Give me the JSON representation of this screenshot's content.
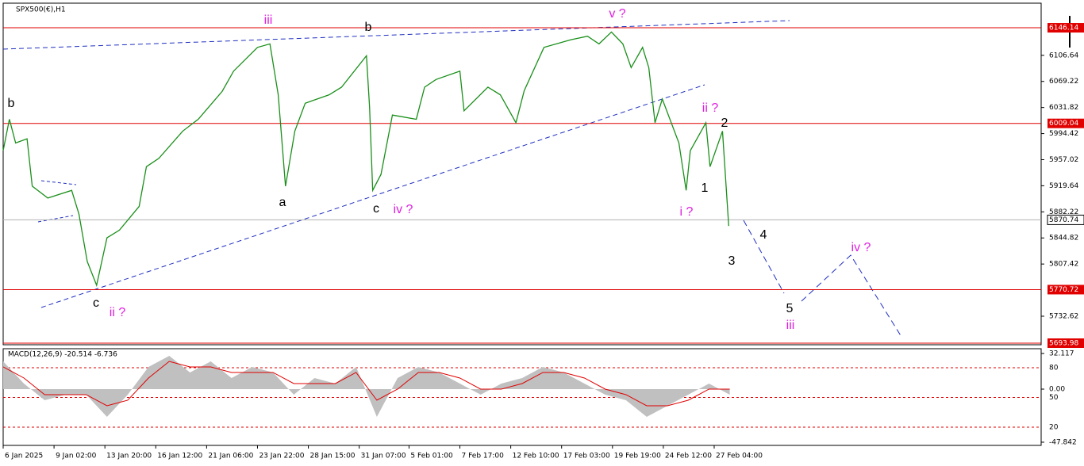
{
  "chart_data": [
    {
      "type": "line",
      "title": "SPX500(€),H1",
      "color": "#1a8f1a",
      "x": [
        0,
        6,
        12,
        23,
        28,
        43,
        66,
        73,
        81,
        90,
        100,
        112,
        131,
        138,
        150,
        173,
        188,
        211,
        222,
        245,
        257,
        265,
        272,
        281,
        291,
        314,
        326,
        350,
        353,
        356,
        364,
        375,
        398,
        406,
        417,
        440,
        444,
        467,
        479,
        494,
        502,
        521,
        547,
        563,
        574,
        586,
        597,
        605,
        616,
        622,
        628,
        635,
        651,
        658,
        662,
        677,
        681,
        693,
        699
      ],
      "values": [
        5970,
        6015,
        5981,
        5987,
        5919,
        5902,
        5913,
        5879,
        5811,
        5777,
        5845,
        5856,
        5890,
        5947,
        5959,
        5998,
        6015,
        6055,
        6084,
        6118,
        6123,
        6050,
        5919,
        5998,
        6038,
        6050,
        6061,
        6106,
        6032,
        5913,
        5936,
        6021,
        6015,
        6061,
        6072,
        6084,
        6027,
        6061,
        6050,
        6010,
        6056,
        6118,
        6129,
        6134,
        6123,
        6140,
        6123,
        6089,
        6118,
        6089,
        6010,
        6044,
        5981,
        5913,
        5970,
        6010,
        5947,
        5998,
        5862
      ],
      "xlim": [
        0,
        1000
      ],
      "ylim": [
        5691.7,
        6181.4
      ],
      "yticks": [
        6106.64,
        6069.22,
        6031.82,
        5994.42,
        5957.02,
        5919.64,
        5882.22,
        5844.82,
        5807.42,
        5732.62
      ],
      "xticks": [
        {
          "value": 0,
          "label": "6 Jan 2025"
        },
        {
          "value": 49,
          "label": "9 Jan 02:00"
        },
        {
          "value": 98,
          "label": "13 Jan 20:00"
        },
        {
          "value": 147,
          "label": "16 Jan 12:00"
        },
        {
          "value": 196,
          "label": "21 Jan 06:00"
        },
        {
          "value": 245,
          "label": "23 Jan 22:00"
        },
        {
          "value": 294,
          "label": "28 Jan 15:00"
        },
        {
          "value": 343,
          "label": "31 Jan 07:00"
        },
        {
          "value": 391,
          "label": "5 Feb 01:00"
        },
        {
          "value": 440,
          "label": "7 Feb 17:00"
        },
        {
          "value": 489,
          "label": "12 Feb 10:00"
        },
        {
          "value": 538,
          "label": "17 Feb 03:00"
        },
        {
          "value": 587,
          "label": "19 Feb 19:00"
        },
        {
          "value": 636,
          "label": "24 Feb 12:00"
        },
        {
          "value": 685,
          "label": "27 Feb 04:00"
        }
      ],
      "levels": [
        6146.14,
        6009.04,
        5770.72,
        5693.98
      ],
      "level_color": "#e00000",
      "current_price": 5870.74,
      "annotations": [
        {
          "text": "iii",
          "color": "#e020e0"
        },
        {
          "text": "b",
          "color": "#000"
        },
        {
          "text": "v ?",
          "color": "#e020e0"
        },
        {
          "text": "b",
          "color": "#000"
        },
        {
          "text": "a",
          "color": "#000"
        },
        {
          "text": "c",
          "color": "#000"
        },
        {
          "text": "iv ?",
          "color": "#e020e0"
        },
        {
          "text": "ii ?",
          "color": "#e020e0"
        },
        {
          "text": "2",
          "color": "#000"
        },
        {
          "text": "1",
          "color": "#000"
        },
        {
          "text": "i ?",
          "color": "#e020e0"
        },
        {
          "text": "4",
          "color": "#000"
        },
        {
          "text": "3",
          "color": "#000"
        },
        {
          "text": "5",
          "color": "#000"
        },
        {
          "text": "iii",
          "color": "#e020e0"
        },
        {
          "text": "iv ?",
          "color": "#e020e0"
        },
        {
          "text": "c",
          "color": "#000"
        },
        {
          "text": "ii ?",
          "color": "#e020e0"
        }
      ]
    },
    {
      "type": "macd",
      "title": "MACD(12,26,9) -20.514 -6.736",
      "x": [
        0,
        20,
        40,
        60,
        80,
        100,
        120,
        140,
        160,
        180,
        200,
        220,
        240,
        260,
        280,
        300,
        320,
        340,
        360,
        380,
        400,
        420,
        440,
        460,
        480,
        500,
        520,
        540,
        560,
        580,
        600,
        620,
        640,
        660,
        680,
        700
      ],
      "series": [
        {
          "color": "#c0c0c0",
          "values": [
            25,
            5,
            -10,
            -5,
            -5,
            -25,
            -5,
            20,
            30,
            15,
            25,
            10,
            20,
            15,
            -5,
            10,
            5,
            20,
            -25,
            10,
            20,
            15,
            5,
            -5,
            5,
            10,
            20,
            15,
            5,
            -5,
            -10,
            -25,
            -15,
            -5,
            5,
            -5
          ]
        },
        {
          "color": "#e00000",
          "values": [
            20,
            10,
            -5,
            -5,
            -5,
            -15,
            -10,
            10,
            25,
            20,
            20,
            15,
            15,
            15,
            5,
            5,
            5,
            15,
            -10,
            0,
            15,
            15,
            10,
            0,
            0,
            5,
            15,
            15,
            10,
            0,
            -5,
            -15,
            -15,
            -10,
            0,
            0
          ]
        }
      ],
      "xlim": [
        0,
        1000
      ],
      "ylim": [
        -49.3,
        35
      ],
      "yticks": [
        32.117,
        {
          "value": 0,
          "label": "0.00"
        },
        -47.842
      ],
      "y2lim": [
        3.2,
        97.6
      ],
      "y2ticks": [
        80,
        50,
        20
      ]
    }
  ]
}
